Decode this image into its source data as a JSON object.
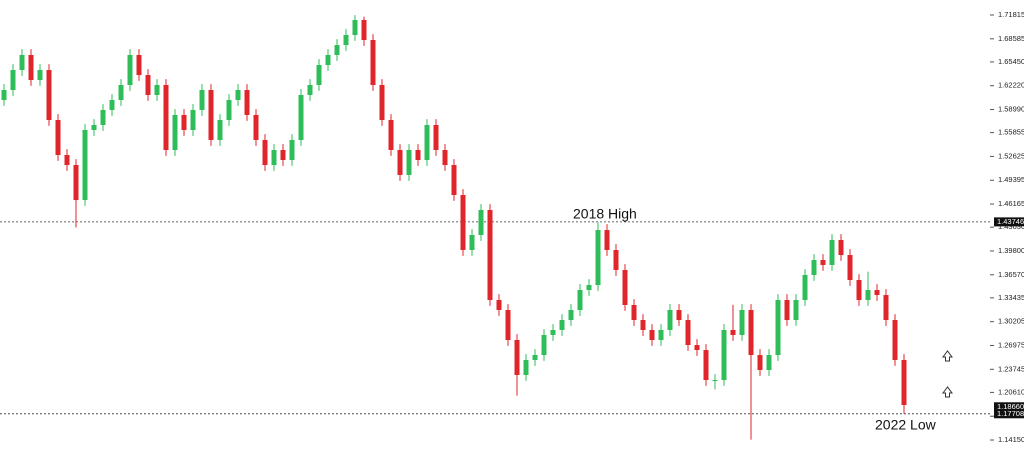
{
  "chart_data": {
    "type": "candlestick",
    "up_color": "#2ebd59",
    "down_color": "#e0262b",
    "ylim": [
      1.1171,
      1.7385
    ],
    "yticks": [
      1.71815,
      1.68585,
      {
        "value": 1.6545,
        "label": "1.65450"
      },
      {
        "value": 1.6222,
        "label": "1.62220"
      },
      {
        "value": 1.5899,
        "label": "1.58990"
      },
      1.55855,
      1.52625,
      1.49395,
      1.46165,
      {
        "value": 1.4303,
        "label": "1.43030"
      },
      {
        "value": 1.398,
        "label": "1.39800"
      },
      {
        "value": 1.3657,
        "label": "1.36570"
      },
      1.33435,
      1.30205,
      1.26975,
      1.23745,
      {
        "value": 1.2061,
        "label": "1.20610"
      },
      {
        "value": 1.1738,
        "label": "1.17380"
      },
      {
        "value": 1.1415,
        "label": "1.14150"
      }
    ],
    "price_markers": [
      1.43746,
      {
        "value": 1.1866,
        "label": "1.18660"
      },
      1.17708
    ],
    "levels": [
      1.43746,
      1.17708
    ],
    "annotations": [
      "2018 High",
      "2022 Low"
    ],
    "open": [
      1.6028,
      1.6164,
      1.6435,
      1.6639,
      1.63,
      1.6435,
      1.5757,
      1.5282,
      1.5146,
      1.4671,
      1.5621,
      1.5689,
      1.5893,
      1.6028,
      1.6232,
      1.6639,
      1.6367,
      1.6096,
      1.6232,
      1.535,
      1.5825,
      1.5621,
      1.5893,
      1.6164,
      1.5486,
      1.5757,
      1.6028,
      1.6164,
      1.5825,
      1.5486,
      1.5146,
      1.535,
      1.5214,
      1.5486,
      1.6096,
      1.6232,
      1.6503,
      1.6639,
      1.6774,
      1.691,
      1.7114,
      1.6842,
      1.6232,
      1.5757,
      1.535,
      1.5011,
      1.535,
      1.5214,
      1.5689,
      1.535,
      1.5146,
      1.4739,
      1.3993,
      1.4197,
      1.4536,
      1.3315,
      1.3179,
      1.2772,
      1.2297,
      1.2501,
      1.2568,
      1.284,
      1.2908,
      1.3043,
      1.3179,
      1.345,
      1.3518,
      1.4264,
      1.3993,
      1.3722,
      1.3247,
      1.3043,
      1.2908,
      1.2772,
      1.2908,
      1.3179,
      1.3043,
      1.2704,
      1.2636,
      1.2229,
      1.2229,
      1.2908,
      1.284,
      1.3179,
      1.2568,
      1.2365,
      1.2568,
      1.3315,
      1.3043,
      1.3315,
      1.3654,
      1.3857,
      1.379,
      1.4129,
      1.3925,
      1.3586,
      1.3315,
      1.345,
      1.3382,
      1.3043,
      1.2501
    ],
    "high": [
      1.6244,
      1.6515,
      1.6719,
      1.6719,
      1.6515,
      1.6515,
      1.5837,
      1.5362,
      1.5226,
      1.5701,
      1.5769,
      1.5973,
      1.6108,
      1.6312,
      1.6719,
      1.6719,
      1.6447,
      1.6312,
      1.6312,
      1.5905,
      1.5905,
      1.5973,
      1.6244,
      1.6244,
      1.5837,
      1.6108,
      1.6244,
      1.6244,
      1.5905,
      1.5566,
      1.543,
      1.543,
      1.5566,
      1.6176,
      1.6312,
      1.6583,
      1.6719,
      1.6854,
      1.699,
      1.718,
      1.716,
      1.6922,
      1.6312,
      1.5837,
      1.543,
      1.543,
      1.543,
      1.5769,
      1.5769,
      1.543,
      1.5226,
      1.4819,
      1.4277,
      1.4616,
      1.4616,
      1.3395,
      1.3259,
      1.2852,
      1.2581,
      1.2648,
      1.292,
      1.2988,
      1.3123,
      1.3259,
      1.353,
      1.3598,
      1.437,
      1.4344,
      1.4073,
      1.3802,
      1.3327,
      1.3123,
      1.2988,
      1.2988,
      1.3259,
      1.3259,
      1.3123,
      1.2784,
      1.2716,
      1.2309,
      1.2988,
      1.325,
      1.3259,
      1.3259,
      1.2648,
      1.2648,
      1.3395,
      1.3395,
      1.3395,
      1.3734,
      1.3937,
      1.3937,
      1.4209,
      1.4209,
      1.4005,
      1.3666,
      1.37,
      1.353,
      1.3462,
      1.3123,
      1.2581
    ],
    "low": [
      1.5948,
      1.6084,
      1.6355,
      1.622,
      1.622,
      1.5677,
      1.5202,
      1.5066,
      1.43,
      1.4591,
      1.5541,
      1.5609,
      1.5813,
      1.5948,
      1.6152,
      1.6287,
      1.6016,
      1.6016,
      1.527,
      1.527,
      1.5541,
      1.5541,
      1.5813,
      1.5406,
      1.5406,
      1.5677,
      1.5948,
      1.5745,
      1.5406,
      1.5066,
      1.5066,
      1.5134,
      1.5134,
      1.5406,
      1.6016,
      1.6152,
      1.6423,
      1.6559,
      1.6694,
      1.683,
      1.6762,
      1.6152,
      1.5677,
      1.527,
      1.4931,
      1.4931,
      1.5134,
      1.5134,
      1.527,
      1.5066,
      1.4659,
      1.3913,
      1.3913,
      1.4117,
      1.3235,
      1.3099,
      1.2692,
      1.2017,
      1.2217,
      1.2421,
      1.2488,
      1.276,
      1.2828,
      1.2963,
      1.3099,
      1.337,
      1.3438,
      1.3913,
      1.3642,
      1.3167,
      1.2963,
      1.2828,
      1.2692,
      1.2692,
      1.2828,
      1.2963,
      1.2624,
      1.2556,
      1.2149,
      1.21,
      1.2149,
      1.276,
      1.276,
      1.142,
      1.2285,
      1.2285,
      1.2488,
      1.2963,
      1.2963,
      1.3235,
      1.3574,
      1.371,
      1.371,
      1.3845,
      1.3506,
      1.3235,
      1.3235,
      1.3302,
      1.2963,
      1.2421,
      1.1771
    ],
    "close": [
      1.6164,
      1.6435,
      1.6639,
      1.63,
      1.6435,
      1.5757,
      1.5282,
      1.5146,
      1.4671,
      1.5621,
      1.5689,
      1.5893,
      1.6028,
      1.6232,
      1.6639,
      1.6367,
      1.6096,
      1.6232,
      1.535,
      1.5825,
      1.5621,
      1.5893,
      1.6164,
      1.5486,
      1.5757,
      1.6028,
      1.6164,
      1.5825,
      1.5486,
      1.5146,
      1.535,
      1.5214,
      1.5486,
      1.6096,
      1.6232,
      1.6503,
      1.6639,
      1.6774,
      1.691,
      1.7114,
      1.6842,
      1.6232,
      1.5757,
      1.535,
      1.5011,
      1.535,
      1.5214,
      1.5689,
      1.535,
      1.5146,
      1.4739,
      1.3993,
      1.4197,
      1.4536,
      1.3315,
      1.3179,
      1.2772,
      1.2297,
      1.2501,
      1.2568,
      1.284,
      1.2908,
      1.3043,
      1.3179,
      1.345,
      1.3518,
      1.4264,
      1.3993,
      1.3722,
      1.3247,
      1.3043,
      1.2908,
      1.2772,
      1.2908,
      1.3179,
      1.3043,
      1.2704,
      1.2636,
      1.2229,
      1.2229,
      1.2908,
      1.284,
      1.3179,
      1.2568,
      1.2365,
      1.2568,
      1.3315,
      1.3043,
      1.3315,
      1.3654,
      1.3857,
      1.379,
      1.4129,
      1.3925,
      1.3586,
      1.3315,
      1.345,
      1.3382,
      1.3043,
      1.2501,
      1.189
    ]
  }
}
